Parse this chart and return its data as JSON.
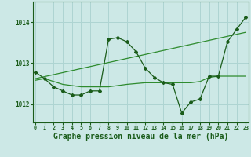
{
  "background_color": "#cce8e6",
  "plot_bg_color": "#cce8e6",
  "grid_color": "#aed4d2",
  "line_color_dark": "#1a5c1a",
  "line_color_light": "#2e8b2e",
  "xlabel": "Graphe pression niveau de la mer (hPa)",
  "xlabel_fontsize": 7.0,
  "yticks": [
    1012,
    1013,
    1014
  ],
  "xticks": [
    0,
    1,
    2,
    3,
    4,
    5,
    6,
    7,
    8,
    9,
    10,
    11,
    12,
    13,
    14,
    15,
    16,
    17,
    18,
    19,
    20,
    21,
    22,
    23
  ],
  "xlim": [
    -0.3,
    23.3
  ],
  "ylim": [
    1011.55,
    1014.5
  ],
  "series_jagged_x": [
    0,
    1,
    2,
    3,
    4,
    5,
    6,
    7,
    8,
    9,
    10,
    11,
    12,
    13,
    14,
    15,
    16,
    17,
    18,
    19,
    20,
    21,
    22,
    23
  ],
  "series_jagged_y": [
    1012.78,
    1012.62,
    1012.42,
    1012.32,
    1012.22,
    1012.22,
    1012.32,
    1012.32,
    1013.58,
    1013.62,
    1013.52,
    1013.28,
    1012.88,
    1012.65,
    1012.52,
    1012.48,
    1011.78,
    1012.05,
    1012.12,
    1012.68,
    1012.68,
    1013.52,
    1013.82,
    1014.12
  ],
  "series_smooth_x": [
    0,
    1,
    2,
    3,
    4,
    5,
    6,
    7,
    8,
    9,
    10,
    11,
    12,
    13,
    14,
    15,
    16,
    17,
    18,
    19,
    20,
    21,
    22,
    23
  ],
  "series_smooth_y": [
    1012.58,
    1012.62,
    1012.55,
    1012.48,
    1012.45,
    1012.42,
    1012.42,
    1012.42,
    1012.42,
    1012.45,
    1012.48,
    1012.5,
    1012.52,
    1012.52,
    1012.52,
    1012.52,
    1012.52,
    1012.52,
    1012.55,
    1012.65,
    1012.68,
    1012.68,
    1012.68,
    1012.68
  ],
  "series_trend_x": [
    0,
    23
  ],
  "series_trend_y": [
    1012.62,
    1013.75
  ],
  "marker": "D",
  "marker_size": 2.0,
  "linewidth": 0.9
}
